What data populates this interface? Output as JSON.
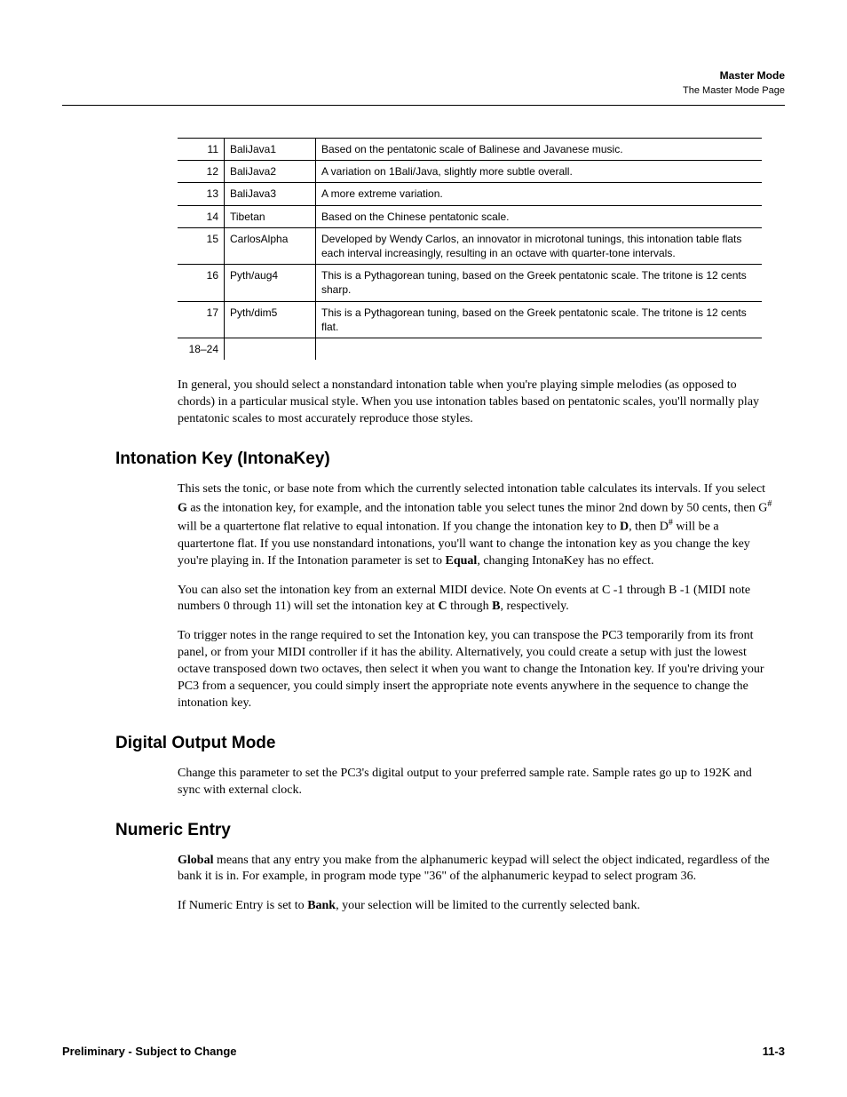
{
  "header": {
    "title": "Master Mode",
    "subtitle": "The Master Mode Page"
  },
  "table": {
    "rows": [
      {
        "num": "11",
        "name": "BaliJava1",
        "desc": "Based on the pentatonic scale of Balinese and Javanese music."
      },
      {
        "num": "12",
        "name": "BaliJava2",
        "desc": "A variation on 1Bali/Java, slightly more subtle overall."
      },
      {
        "num": "13",
        "name": "BaliJava3",
        "desc": "A more extreme variation."
      },
      {
        "num": "14",
        "name": "Tibetan",
        "desc": "Based on the Chinese pentatonic scale."
      },
      {
        "num": "15",
        "name": "CarlosAlpha",
        "desc": "Developed by Wendy Carlos, an innovator in microtonal tunings, this intonation table flats each interval increasingly, resulting in an octave with quarter-tone intervals."
      },
      {
        "num": "16",
        "name": "Pyth/aug4",
        "desc": "This is a Pythagorean tuning, based on the Greek pentatonic scale. The tritone is 12 cents sharp."
      },
      {
        "num": "17",
        "name": "Pyth/dim5",
        "desc": "This is a Pythagorean tuning, based on the Greek pentatonic scale. The tritone is 12 cents flat."
      },
      {
        "num": "18–24",
        "name": "",
        "desc": ""
      }
    ]
  },
  "intro_para": "In general, you should select a nonstandard intonation table when you're playing simple melodies (as opposed to chords) in a particular musical style. When you use intonation tables based on pentatonic scales, you'll normally play pentatonic scales to most accurately reproduce those styles.",
  "sections": {
    "intonakey": {
      "heading": "Intonation Key (IntonaKey)",
      "p1_a": "This sets the tonic, or base note from which the currently selected intonation table calculates its intervals. If you select ",
      "p1_G": "G",
      "p1_b": " as the intonation key, for example, and the intonation table you select tunes the minor 2nd down by 50 cents, then G",
      "p1_sharp1": "#",
      "p1_c": " will be a quartertone flat relative to equal intonation. If you change the intonation key to ",
      "p1_D": "D",
      "p1_d": ", then D",
      "p1_sharp2": "#",
      "p1_e": " will be a quartertone flat. If you use nonstandard intonations, you'll want to change the intonation key as you change the key you're playing in. If the Intonation parameter is set to ",
      "p1_Equal": "Equal",
      "p1_f": ", changing IntonaKey has no effect.",
      "p2_a": "You can also set the intonation key from an external MIDI device. Note On events at C -1 through B -1 (MIDI note numbers 0 through 11) will set the intonation key at ",
      "p2_C": "C",
      "p2_b": " through ",
      "p2_B": "B",
      "p2_c": ", respectively.",
      "p3": "To trigger notes in the range required to set the Intonation key, you can transpose the PC3 temporarily from its front panel, or from your MIDI controller if it has the ability. Alternatively, you could create a setup with just the lowest octave transposed down two octaves, then select it when you want to change the Intonation key. If you're driving your PC3 from a sequencer, you could simply insert the appropriate note events anywhere in the sequence to change the intonation key."
    },
    "digital": {
      "heading": "Digital Output Mode",
      "p1": "Change this parameter to set the PC3's digital output to your preferred sample rate. Sample rates go up to 192K and sync with external clock."
    },
    "numeric": {
      "heading": "Numeric Entry",
      "p1_Global": "Global",
      "p1_a": " means that any entry you make from the alphanumeric keypad will select the object indicated, regardless of the bank it is in. For example, in program mode type \"36\" of the alphanumeric keypad to select program 36.",
      "p2_a": "If Numeric Entry is set to ",
      "p2_Bank": "Bank",
      "p2_b": ", your selection will be limited to the currently selected bank."
    }
  },
  "footer": {
    "left": "Preliminary - Subject to Change",
    "right": "11-3"
  }
}
